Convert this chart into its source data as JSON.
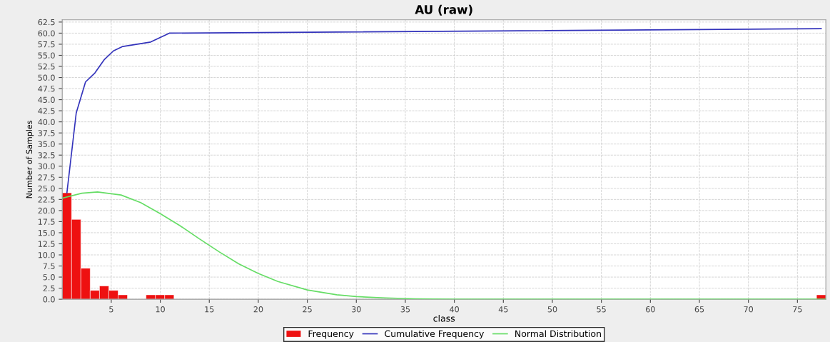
{
  "chart_data": {
    "type": "histogram",
    "title": "AU (raw)",
    "xlabel": "class",
    "ylabel": "Number of Samples",
    "bins": [
      0,
      0.95,
      1.9,
      2.85,
      3.8,
      4.75,
      5.7,
      6.65,
      7.6,
      8.55,
      9.5,
      10.45,
      11.4,
      12.35,
      13.3,
      14.25,
      15.2,
      16.15,
      17.1,
      18.05,
      19.0,
      19.95,
      20.9,
      21.85,
      22.8,
      23.75,
      24.7,
      25.65,
      26.6,
      27.55,
      28.5,
      29.45,
      30.4,
      31.35,
      32.3,
      33.25,
      34.2,
      35.15,
      36.1,
      37.05,
      38.0,
      38.95,
      39.9,
      40.85,
      41.8,
      42.75,
      43.7,
      44.65,
      45.6,
      46.55,
      47.5,
      48.45,
      49.4,
      50.35,
      51.3,
      52.25,
      53.2,
      54.15,
      55.1,
      56.05,
      57.0,
      57.95,
      58.9,
      59.85,
      60.8,
      61.75,
      62.7,
      63.65,
      64.6,
      65.55,
      66.5,
      67.45,
      68.4,
      69.35,
      70.3,
      71.25,
      72.2,
      73.15,
      74.1,
      75.05,
      76.0,
      76.95,
      77.9
    ],
    "series": [
      {
        "name": "Frequency",
        "color": "#ee1111",
        "values": [
          24,
          18,
          7,
          2,
          3,
          2,
          1,
          0,
          0,
          1,
          1,
          1,
          0,
          0,
          0,
          0,
          0,
          0,
          0,
          0,
          0,
          0,
          0,
          0,
          0,
          0,
          0,
          0,
          0,
          0,
          0,
          0,
          0,
          0,
          0,
          0,
          0,
          0,
          0,
          0,
          0,
          0,
          0,
          0,
          0,
          0,
          0,
          0,
          0,
          0,
          0,
          0,
          0,
          0,
          0,
          0,
          0,
          0,
          0,
          0,
          0,
          0,
          0,
          0,
          0,
          0,
          0,
          0,
          0,
          0,
          0,
          0,
          0,
          0,
          0,
          0,
          0,
          0,
          0,
          0,
          0,
          1
        ]
      },
      {
        "name": "Cumulative Frequency",
        "type": "line",
        "color": "#3333bb",
        "x": [
          0.475,
          1.425,
          2.375,
          3.325,
          4.275,
          5.225,
          6.175,
          9.025,
          10.925,
          77.425
        ],
        "values": [
          24,
          42,
          49,
          51,
          54,
          56,
          57,
          58,
          60,
          61
        ]
      },
      {
        "name": "Normal Distribution",
        "type": "line",
        "color": "#66dd66",
        "x": [
          0,
          2,
          3.6,
          6,
          8,
          10,
          12,
          14,
          16,
          18,
          20,
          22,
          25,
          28,
          30,
          33,
          36,
          40,
          45,
          50,
          77.9
        ],
        "values": [
          22.8,
          23.9,
          24.2,
          23.5,
          21.8,
          19.3,
          16.6,
          13.6,
          10.7,
          8.0,
          5.8,
          4.0,
          2.1,
          1.0,
          0.6,
          0.3,
          0.1,
          0,
          0,
          0,
          0
        ]
      }
    ],
    "xlim": [
      0,
      77.9
    ],
    "xticks": [
      5,
      10,
      15,
      20,
      25,
      30,
      35,
      40,
      45,
      50,
      55,
      60,
      65,
      70,
      75
    ],
    "ylim": [
      0,
      63
    ],
    "yticks": [
      {
        "value": 0,
        "label": "0.0"
      },
      {
        "value": 2.5,
        "label": "2.5"
      },
      {
        "value": 5,
        "label": "5.0"
      },
      {
        "value": 7.5,
        "label": "7.5"
      },
      {
        "value": 10,
        "label": "10.0"
      },
      {
        "value": 12.5,
        "label": "12.5"
      },
      {
        "value": 15,
        "label": "15.0"
      },
      {
        "value": 17.5,
        "label": "17.5"
      },
      {
        "value": 20,
        "label": "20.0"
      },
      {
        "value": 22.5,
        "label": "22.5"
      },
      {
        "value": 25,
        "label": "25.0"
      },
      {
        "value": 27.5,
        "label": "27.5"
      },
      {
        "value": 30,
        "label": "30.0"
      },
      {
        "value": 32.5,
        "label": "32.5"
      },
      {
        "value": 35,
        "label": "35.0"
      },
      {
        "value": 37.5,
        "label": "37.5"
      },
      {
        "value": 40,
        "label": "40.0"
      },
      {
        "value": 42.5,
        "label": "42.5"
      },
      {
        "value": 45,
        "label": "45.0"
      },
      {
        "value": 47.5,
        "label": "47.5"
      },
      {
        "value": 50,
        "label": "50.0"
      },
      {
        "value": 52.5,
        "label": "52.5"
      },
      {
        "value": 55,
        "label": "55.0"
      },
      {
        "value": 57.5,
        "label": "57.5"
      },
      {
        "value": 60,
        "label": "60.0"
      },
      {
        "value": 62.5,
        "label": "62.5"
      }
    ],
    "grid": true,
    "legend": "bottom"
  }
}
